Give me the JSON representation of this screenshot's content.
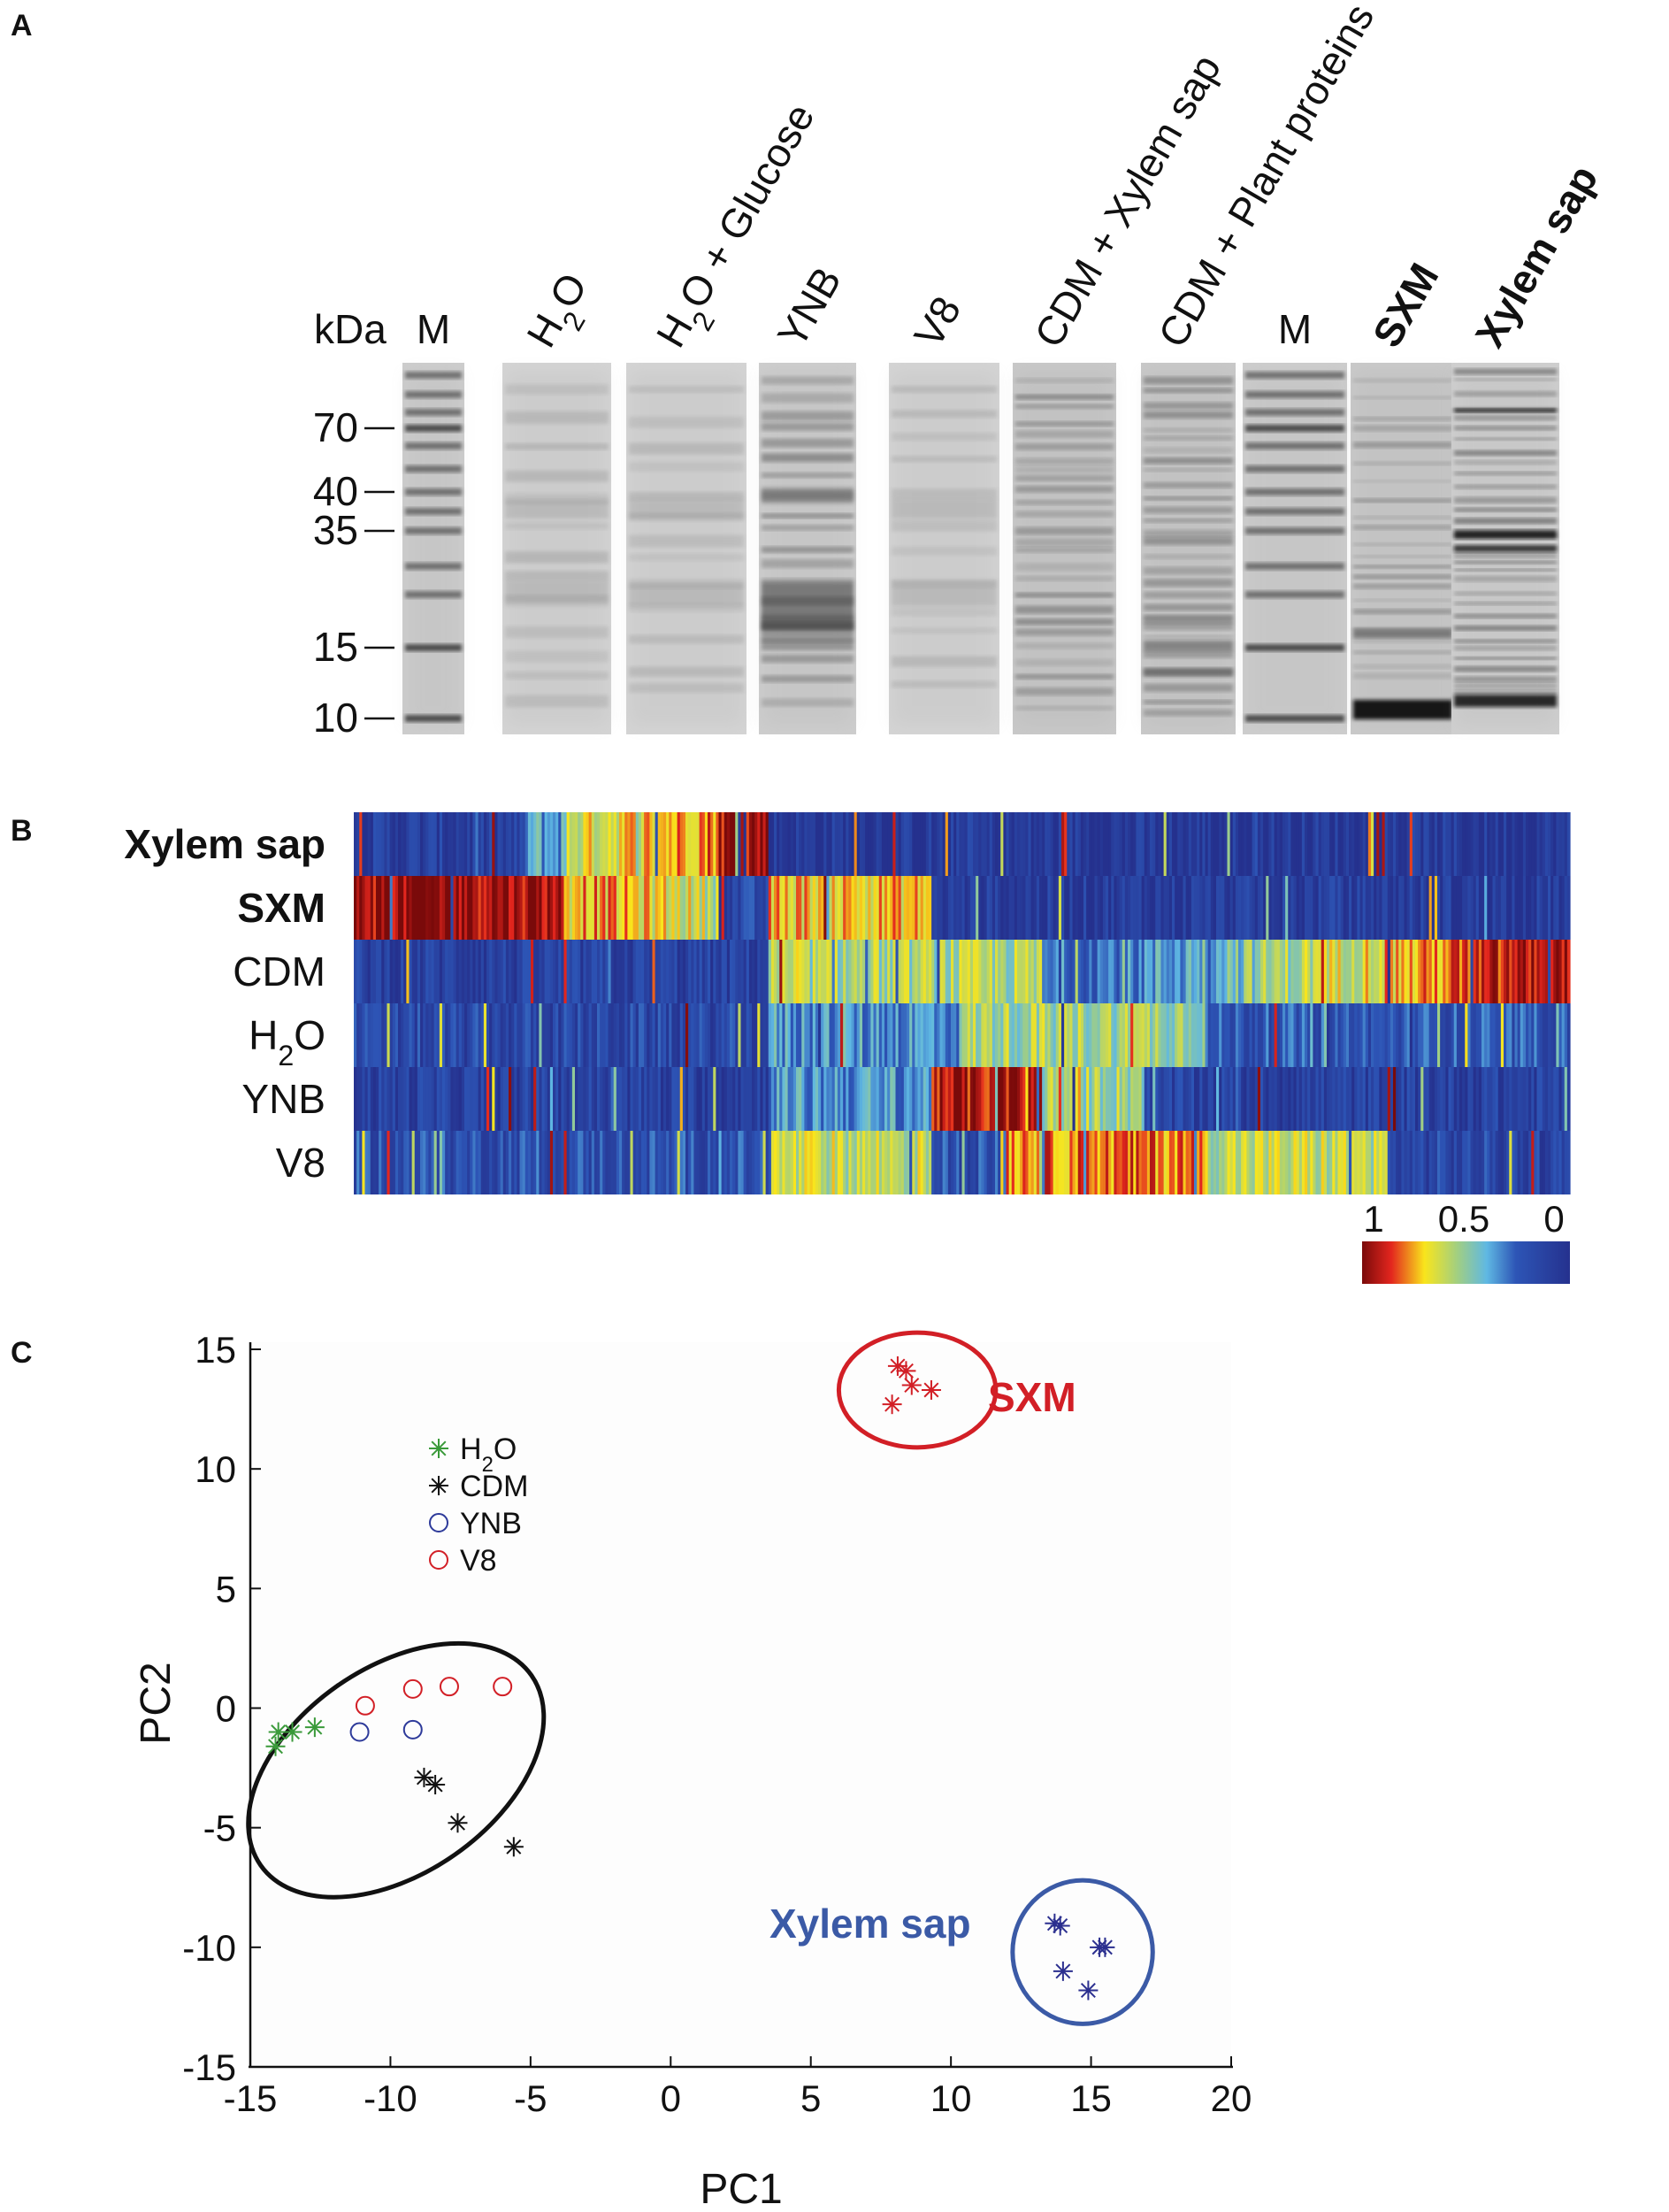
{
  "panel_letters": {
    "a": "A",
    "b": "B",
    "c": "C"
  },
  "colors": {
    "red": "#d21f26",
    "blue": "#3b5aa6",
    "green": "#3a9a3a",
    "black": "#111111",
    "navy": "#2b2f8f",
    "ynb_blue": "#2d3a9a"
  },
  "gel": {
    "kda_label": "kDa",
    "markers": [
      {
        "label": "70",
        "kda": 70
      },
      {
        "label": "40",
        "kda": 40
      },
      {
        "label": "35",
        "kda": 35
      },
      {
        "label": "15",
        "kda": 15
      },
      {
        "label": "10",
        "kda": 10
      }
    ],
    "lanes": [
      {
        "label": "M",
        "rotated": false,
        "style": "plain",
        "type": "marker"
      },
      {
        "label": "H",
        "sub": "2",
        "tail": "O",
        "rotated": true,
        "style": "plain",
        "type": "faint"
      },
      {
        "label": "H",
        "sub": "2",
        "tail": "O + Glucose",
        "rotated": true,
        "style": "plain",
        "type": "faint"
      },
      {
        "label": "YNB",
        "rotated": true,
        "style": "plain",
        "type": "ynb"
      },
      {
        "label": "V8",
        "rotated": true,
        "style": "plain",
        "type": "faint"
      },
      {
        "label": "CDM + Xylem sap",
        "rotated": true,
        "style": "plain",
        "type": "cdm"
      },
      {
        "label": "CDM + Plant proteins",
        "rotated": true,
        "style": "plain",
        "type": "cdmplant"
      },
      {
        "label": "M",
        "rotated": false,
        "style": "plain",
        "type": "marker"
      },
      {
        "label": "SXM",
        "rotated": true,
        "style": "red",
        "type": "sxm"
      },
      {
        "label": "Xylem sap",
        "rotated": true,
        "style": "blue",
        "type": "xylem"
      }
    ]
  },
  "heatmap": {
    "rows": [
      {
        "label": "Xylem sap",
        "style": "blue"
      },
      {
        "label": "SXM",
        "style": "red"
      },
      {
        "label": "CDM",
        "style": "plain"
      },
      {
        "label": "H",
        "sub": "2",
        "tail": "O",
        "style": "plain"
      },
      {
        "label": "YNB",
        "style": "plain"
      },
      {
        "label": "V8",
        "style": "plain"
      }
    ],
    "colorbar": {
      "labels": [
        "1",
        "0.5",
        "0"
      ],
      "values": [
        1,
        0.5,
        0
      ]
    }
  },
  "chart_data": {
    "type": "scatter",
    "title": "",
    "xlabel": "PC1",
    "ylabel": "PC2",
    "xlim": [
      -15,
      20
    ],
    "ylim": [
      -15,
      15
    ],
    "xticks": [
      -15,
      -10,
      -5,
      0,
      5,
      10,
      15,
      20
    ],
    "yticks": [
      -15,
      -10,
      -5,
      0,
      5,
      10,
      15
    ],
    "grid": false,
    "legend_position": "top-left",
    "series": [
      {
        "name": "H",
        "name_sub": "2",
        "name_tail": "O",
        "marker": "asterisk",
        "color": "#3a9a3a",
        "legend": true,
        "points": [
          [
            -14.0,
            -1.0
          ],
          [
            -13.5,
            -1.0
          ],
          [
            -14.1,
            -1.6
          ],
          [
            -12.7,
            -0.8
          ]
        ]
      },
      {
        "name": "CDM",
        "marker": "asterisk",
        "color": "#111111",
        "legend": true,
        "points": [
          [
            -8.8,
            -2.9
          ],
          [
            -8.4,
            -3.2
          ],
          [
            -7.6,
            -4.8
          ],
          [
            -5.6,
            -5.8
          ]
        ]
      },
      {
        "name": "YNB",
        "marker": "circle",
        "color": "#2d3a9a",
        "legend": true,
        "points": [
          [
            -11.1,
            -1.0
          ],
          [
            -9.2,
            -0.9
          ]
        ]
      },
      {
        "name": "V8",
        "marker": "circle",
        "color": "#d21f26",
        "legend": true,
        "points": [
          [
            -10.9,
            0.1
          ],
          [
            -9.2,
            0.8
          ],
          [
            -7.9,
            0.9
          ],
          [
            -6.0,
            0.9
          ]
        ]
      },
      {
        "marker": "asterisk",
        "color": "#d21f26",
        "legend": false,
        "points": [
          [
            8.1,
            14.3
          ],
          [
            8.4,
            14.1
          ],
          [
            8.6,
            13.5
          ],
          [
            9.3,
            13.3
          ],
          [
            7.9,
            12.7
          ]
        ]
      },
      {
        "marker": "asterisk",
        "color": "#2b2f8f",
        "legend": false,
        "points": [
          [
            13.7,
            -9.0
          ],
          [
            13.9,
            -9.1
          ],
          [
            15.3,
            -10.0
          ],
          [
            15.5,
            -10.0
          ],
          [
            14.0,
            -11.0
          ],
          [
            14.9,
            -11.8
          ]
        ]
      }
    ],
    "ellipses": [
      {
        "label": "",
        "color": "#111111",
        "cx": -9.8,
        "cy": -2.6,
        "rx": 5.9,
        "ry": 4.3,
        "angle": -35
      },
      {
        "label": "SXM",
        "color": "#d21f26",
        "cx": 8.8,
        "cy": 13.3,
        "rx": 2.8,
        "ry": 2.4,
        "angle": 0
      },
      {
        "label": "Xylem sap",
        "color": "#3b5aa6",
        "cx": 14.7,
        "cy": -10.2,
        "rx": 2.5,
        "ry": 3.0,
        "angle": 0
      }
    ]
  }
}
